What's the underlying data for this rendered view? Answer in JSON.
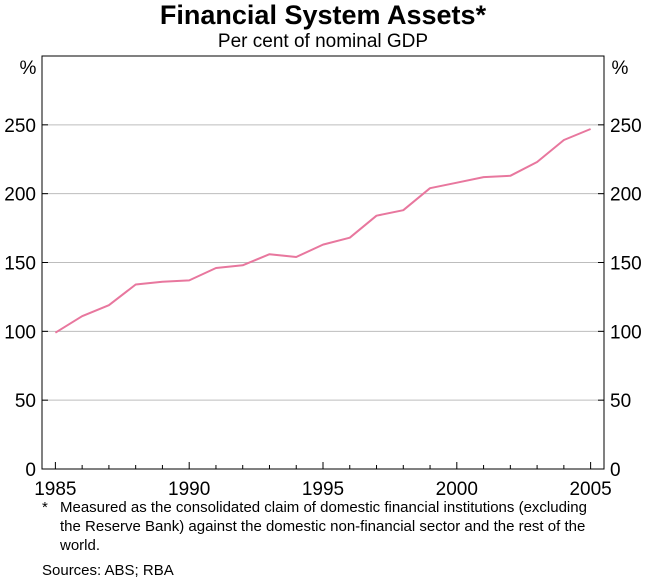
{
  "chart_data": {
    "type": "line",
    "title": "Financial System Assets*",
    "subtitle": "Per cent of nominal GDP",
    "ylabel_left": "%",
    "ylabel_right": "%",
    "ylim": [
      0,
      300
    ],
    "yticks": [
      0,
      50,
      100,
      150,
      200,
      250
    ],
    "xlim": [
      1984.5,
      2005.5
    ],
    "xticks": [
      1985,
      1990,
      1995,
      2000,
      2005
    ],
    "grid": true,
    "series": [
      {
        "color": "#e8779e",
        "x": [
          1985,
          1986,
          1987,
          1988,
          1989,
          1990,
          1991,
          1992,
          1993,
          1994,
          1995,
          1996,
          1997,
          1998,
          1999,
          2000,
          2001,
          2002,
          2003,
          2004,
          2005
        ],
        "y": [
          99,
          111,
          119,
          134,
          136,
          137,
          146,
          148,
          156,
          154,
          163,
          168,
          184,
          188,
          204,
          208,
          212,
          213,
          223,
          239,
          247
        ]
      }
    ]
  },
  "footnote": {
    "marker": "*",
    "text": "Measured as the consolidated claim of domestic financial institutions (excluding the Reserve Bank) against the domestic non-financial sector and the rest of the world."
  },
  "sources": "Sources: ABS; RBA"
}
